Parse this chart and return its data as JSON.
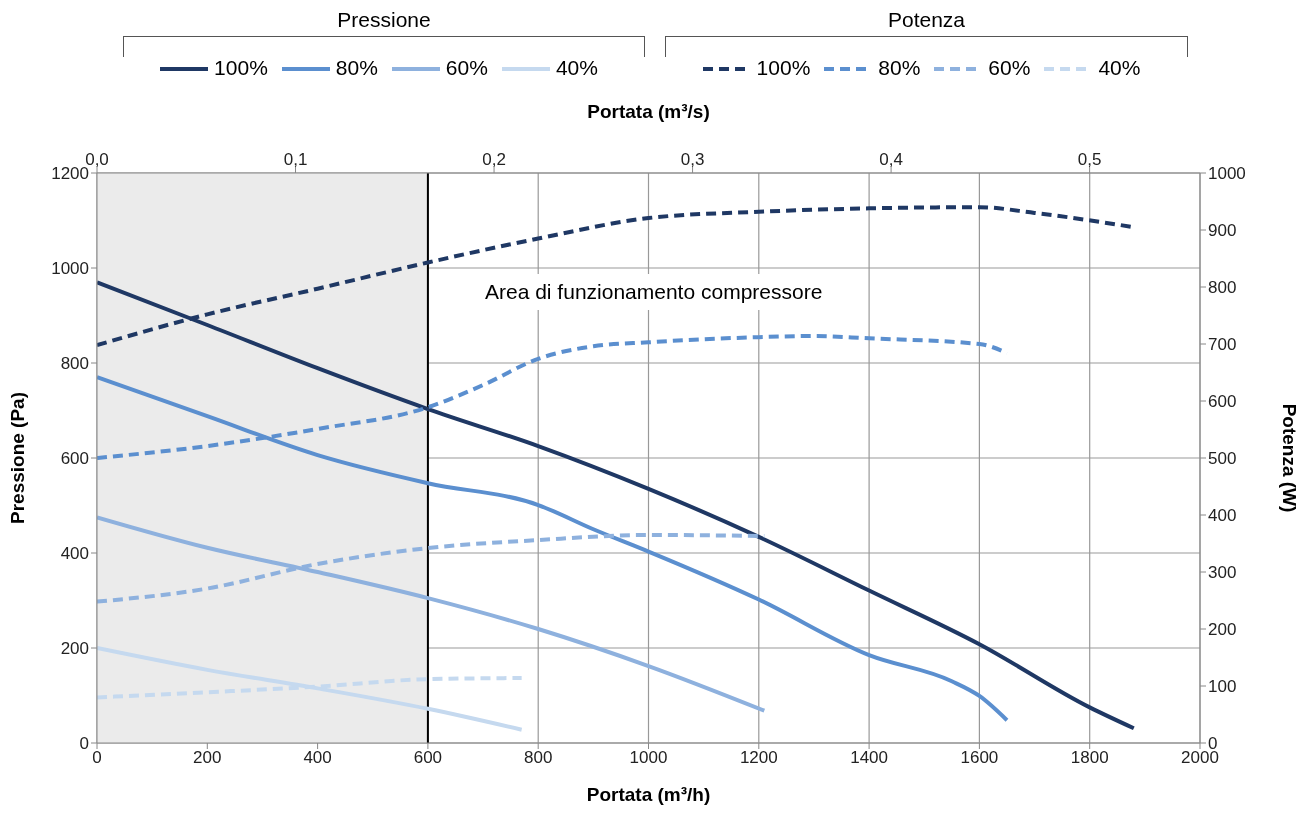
{
  "chart_data": {
    "type": "line",
    "xlabel": "Portata (m³/h)",
    "x2label": "Portata (m³/s)",
    "ylabel": "Pressione (Pa)",
    "y2label": "Potenza (W)",
    "annotations": [
      "Area di funzionamento compressore",
      "Pressione",
      "Potenza"
    ],
    "xlim": [
      0,
      2000
    ],
    "xticks": [
      0,
      200,
      400,
      600,
      800,
      1000,
      1200,
      1400,
      1600,
      1800,
      2000
    ],
    "x2lim": [
      0,
      0.5556
    ],
    "x2ticks": [
      {
        "value": 0,
        "label": "0,0"
      },
      {
        "value": 0.1,
        "label": "0,1"
      },
      {
        "value": 0.2,
        "label": "0,2"
      },
      {
        "value": 0.3,
        "label": "0,3"
      },
      {
        "value": 0.4,
        "label": "0,4"
      },
      {
        "value": 0.5,
        "label": "0,5"
      }
    ],
    "ylim": [
      0,
      1200
    ],
    "yticks": [
      0,
      200,
      400,
      600,
      800,
      1000,
      1200
    ],
    "y2lim": [
      0,
      1000
    ],
    "y2ticks": [
      0,
      100,
      200,
      300,
      400,
      500,
      600,
      700,
      800,
      900,
      1000
    ],
    "grid": true,
    "legend": "top",
    "marker": "none",
    "bands": [
      {
        "axis": "x",
        "from": 0,
        "to": 600,
        "color": "#ebebeb"
      }
    ],
    "ref_lines": [
      {
        "axis": "x",
        "value": 600,
        "color": "#000000"
      }
    ],
    "series": [
      {
        "name": "100%",
        "color": "#1f3864",
        "line_style": "solid",
        "axis": "y",
        "x": [
          0,
          200,
          400,
          600,
          800,
          1000,
          1200,
          1400,
          1600,
          1800,
          1880
        ],
        "values": [
          970,
          880,
          789,
          703,
          625,
          535,
          434,
          321,
          208,
          75,
          31
        ]
      },
      {
        "name": "80%",
        "color": "#5b8fcf",
        "line_style": "solid",
        "axis": "y",
        "x": [
          0,
          200,
          400,
          600,
          800,
          900,
          1000,
          1200,
          1400,
          1550,
          1600,
          1650
        ],
        "values": [
          770,
          688,
          606,
          547,
          501,
          450,
          403,
          302,
          185,
          130,
          99,
          48
        ]
      },
      {
        "name": "60%",
        "color": "#8eb1de",
        "line_style": "solid",
        "axis": "y",
        "x": [
          0,
          200,
          400,
          600,
          800,
          1000,
          1210
        ],
        "values": [
          475,
          411,
          360,
          305,
          240,
          162,
          68
        ]
      },
      {
        "name": "40%",
        "color": "#c5d9ef",
        "line_style": "solid",
        "axis": "y",
        "x": [
          0,
          200,
          400,
          600,
          770
        ],
        "values": [
          200,
          154,
          115,
          72,
          28
        ]
      },
      {
        "name": "100%",
        "color": "#1f3864",
        "line_style": "dashed",
        "axis": "y2",
        "x": [
          0,
          200,
          400,
          600,
          800,
          1000,
          1200,
          1400,
          1600,
          1700,
          1880
        ],
        "values": [
          698,
          752,
          797,
          843,
          885,
          921,
          932,
          938,
          940,
          930,
          905
        ]
      },
      {
        "name": "80%",
        "color": "#5b8fcf",
        "line_style": "dashed",
        "axis": "y2",
        "x": [
          0,
          200,
          400,
          600,
          700,
          800,
          900,
          1000,
          1200,
          1300,
          1400,
          1600,
          1650
        ],
        "values": [
          500,
          521,
          551,
          589,
          628,
          674,
          696,
          703,
          712,
          714,
          710,
          700,
          684
        ]
      },
      {
        "name": "60%",
        "color": "#8eb1de",
        "line_style": "dashed",
        "axis": "y2",
        "x": [
          0,
          200,
          400,
          600,
          800,
          1000,
          1210
        ],
        "values": [
          248,
          271,
          314,
          342,
          356,
          365,
          363
        ]
      },
      {
        "name": "40%",
        "color": "#c5d9ef",
        "line_style": "dashed",
        "axis": "y2",
        "x": [
          0,
          200,
          400,
          600,
          770
        ],
        "values": [
          80,
          89,
          99,
          112,
          114
        ]
      }
    ]
  }
}
